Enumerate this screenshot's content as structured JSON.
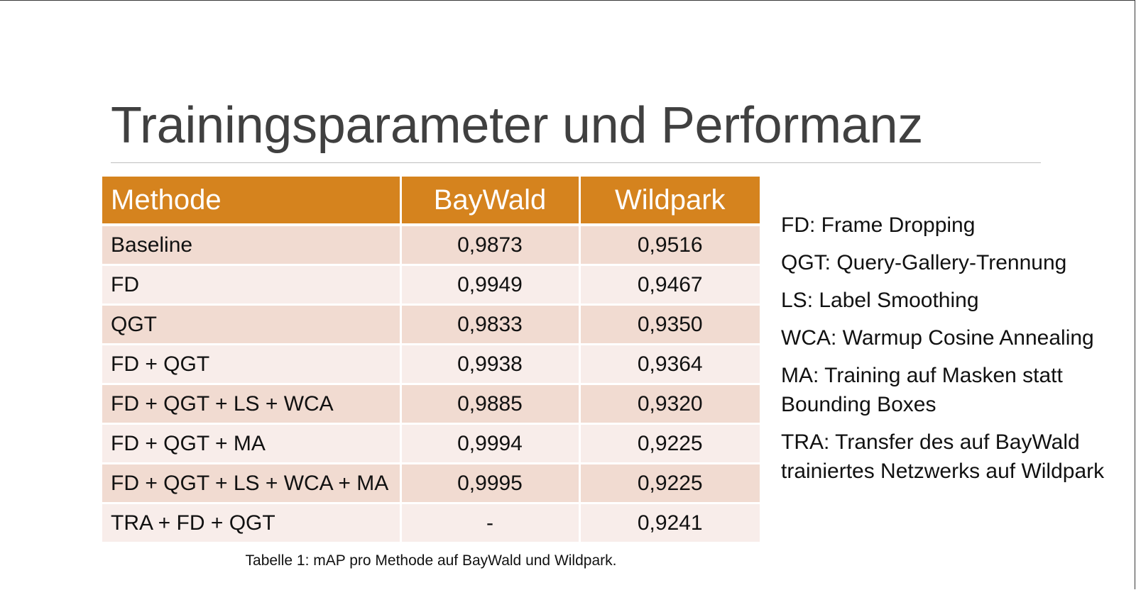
{
  "slide": {
    "title": "Trainingsparameter und Performanz"
  },
  "table": {
    "headers": [
      "Methode",
      "BayWald",
      "Wildpark"
    ],
    "rows": [
      [
        "Baseline",
        "0,9873",
        "0,9516"
      ],
      [
        "FD",
        "0,9949",
        "0,9467"
      ],
      [
        "QGT",
        "0,9833",
        "0,9350"
      ],
      [
        "FD + QGT",
        "0,9938",
        "0,9364"
      ],
      [
        "FD + QGT + LS + WCA",
        "0,9885",
        "0,9320"
      ],
      [
        "FD + QGT + MA",
        "0,9994",
        "0,9225"
      ],
      [
        "FD + QGT + LS + WCA + MA",
        "0,9995",
        "0,9225"
      ],
      [
        "TRA + FD + QGT",
        "-",
        "0,9241"
      ]
    ],
    "caption": "Tabelle 1: mAP pro Methode auf BayWald und Wildpark.",
    "header_color": "#d5831e",
    "row_color_odd": "#f1dbd1",
    "row_color_even": "#f8edea"
  },
  "legend": [
    "FD: Frame Dropping",
    "QGT: Query-Gallery-Trennung",
    "LS: Label Smoothing",
    "WCA: Warmup Cosine Annealing",
    "MA: Training auf Masken statt Bounding Boxes",
    "TRA: Transfer des auf BayWald trainiertes Netzwerks auf Wildpark"
  ]
}
